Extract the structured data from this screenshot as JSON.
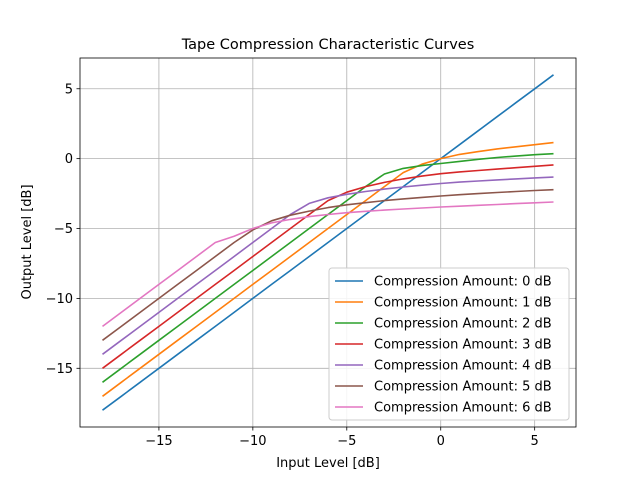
{
  "chart_data": {
    "type": "line",
    "title": "Tape Compression Characteristic Curves",
    "xlabel": "Input Level [dB]",
    "ylabel": "Output Level [dB]",
    "xlim": [
      -19.2,
      7.2
    ],
    "ylim": [
      -19.2,
      7.2
    ],
    "xticks": [
      -15,
      -10,
      -5,
      0,
      5
    ],
    "yticks": [
      -15,
      -10,
      -5,
      0,
      5
    ],
    "xtick_labels": [
      "−15",
      "−10",
      "−5",
      "0",
      "5"
    ],
    "ytick_labels": [
      "−15",
      "−10",
      "−5",
      "0",
      "5"
    ],
    "grid": true,
    "legend_position": "lower-right",
    "x": [
      -18,
      -17,
      -16,
      -15,
      -14,
      -13,
      -12,
      -11,
      -10,
      -9,
      -8,
      -7,
      -6,
      -5,
      -4,
      -3,
      -2,
      -1,
      0,
      1,
      2,
      3,
      4,
      5,
      6
    ],
    "series": [
      {
        "name": "Compression Amount: 0 dB",
        "color": "#1f77b4",
        "values": [
          -18,
          -17,
          -16,
          -15,
          -14,
          -13,
          -12,
          -11,
          -10,
          -9,
          -8,
          -7,
          -6,
          -5,
          -4,
          -3,
          -2,
          -1,
          0,
          1,
          2,
          3,
          4,
          5,
          6
        ]
      },
      {
        "name": "Compression Amount: 1 dB",
        "color": "#ff7f0e",
        "values": [
          -17,
          -16,
          -15,
          -14,
          -13,
          -12,
          -11,
          -10,
          -9,
          -8,
          -7,
          -6,
          -5,
          -4,
          -3,
          -2,
          -1,
          -0.4,
          0,
          0.3,
          0.5,
          0.7,
          0.85,
          1.0,
          1.15
        ]
      },
      {
        "name": "Compression Amount: 2 dB",
        "color": "#2ca02c",
        "values": [
          -16,
          -15,
          -14,
          -13,
          -12,
          -11,
          -10,
          -9,
          -8,
          -7,
          -6,
          -5,
          -4,
          -3,
          -2,
          -1.1,
          -0.7,
          -0.5,
          -0.35,
          -0.2,
          -0.05,
          0.08,
          0.18,
          0.28,
          0.35
        ]
      },
      {
        "name": "Compression Amount: 3 dB",
        "color": "#d62728",
        "values": [
          -15,
          -14,
          -13,
          -12,
          -11,
          -10,
          -9,
          -8,
          -7,
          -6,
          -5,
          -4,
          -3,
          -2.4,
          -2.0,
          -1.7,
          -1.45,
          -1.25,
          -1.08,
          -0.95,
          -0.85,
          -0.75,
          -0.65,
          -0.55,
          -0.45
        ]
      },
      {
        "name": "Compression Amount: 4 dB",
        "color": "#9467bd",
        "values": [
          -14,
          -13,
          -12,
          -11,
          -10,
          -9,
          -8,
          -7,
          -6,
          -5,
          -4,
          -3.2,
          -2.8,
          -2.55,
          -2.35,
          -2.18,
          -2.03,
          -1.9,
          -1.78,
          -1.68,
          -1.6,
          -1.52,
          -1.45,
          -1.38,
          -1.32
        ]
      },
      {
        "name": "Compression Amount: 5 dB",
        "color": "#8c564b",
        "values": [
          -13,
          -12,
          -11,
          -10,
          -9,
          -8,
          -7,
          -6,
          -5.1,
          -4.45,
          -4.05,
          -3.75,
          -3.5,
          -3.3,
          -3.15,
          -3.0,
          -2.88,
          -2.77,
          -2.67,
          -2.58,
          -2.5,
          -2.42,
          -2.35,
          -2.28,
          -2.22
        ]
      },
      {
        "name": "Compression Amount: 6 dB",
        "color": "#e377c2",
        "values": [
          -12,
          -11,
          -10,
          -9,
          -8,
          -7,
          -6,
          -5.55,
          -5.0,
          -4.6,
          -4.35,
          -4.15,
          -4.0,
          -3.87,
          -3.77,
          -3.68,
          -3.6,
          -3.53,
          -3.46,
          -3.4,
          -3.34,
          -3.28,
          -3.22,
          -3.16,
          -3.1
        ]
      }
    ]
  }
}
